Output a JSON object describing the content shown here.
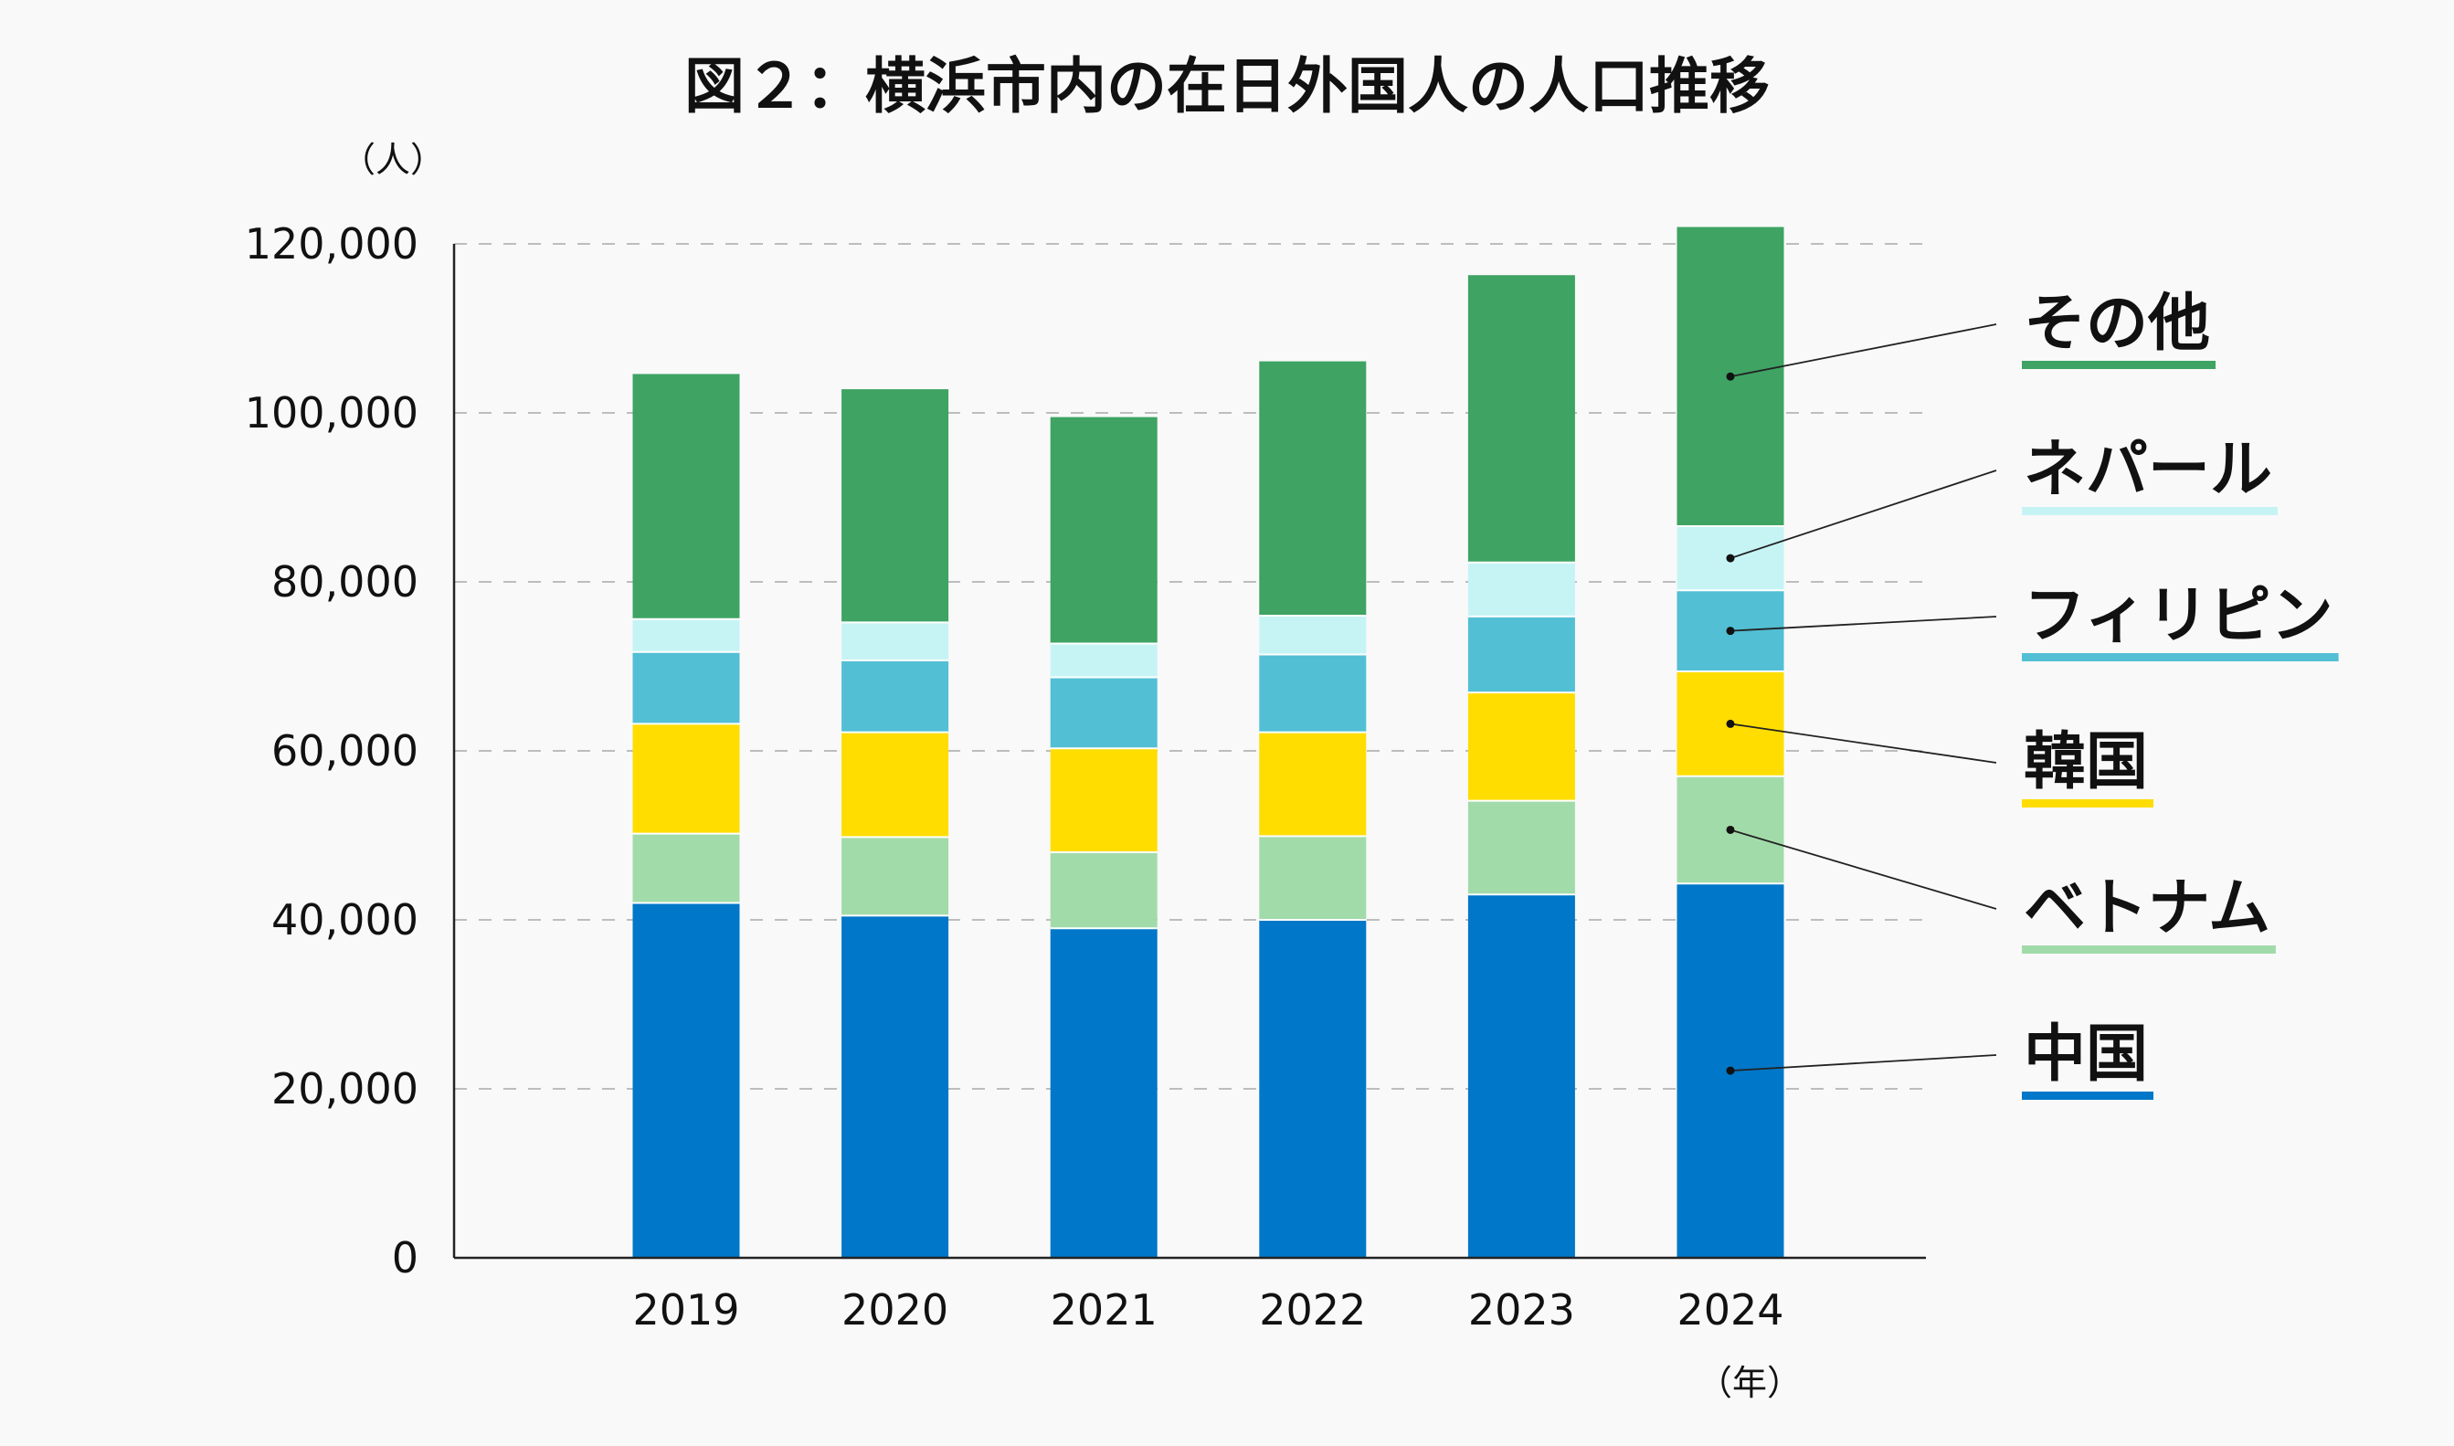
{
  "chart_data": {
    "type": "bar",
    "stacked": true,
    "title": "図２：横浜市内の在日外国人の人口推移",
    "ylabel": "（人）",
    "xlabel": "（年）",
    "categories": [
      "2019",
      "2020",
      "2021",
      "2022",
      "2023",
      "2024"
    ],
    "ylim": [
      0,
      120000
    ],
    "yticks": [
      0,
      20000,
      40000,
      60000,
      80000,
      100000,
      120000
    ],
    "ytick_labels": [
      "0",
      "20,000",
      "40,000",
      "60,000",
      "80,000",
      "100,000",
      "120,000"
    ],
    "grid": "horizontal dashed",
    "legend_placement": "right",
    "series": [
      {
        "name": "中国",
        "color": "#0077c8",
        "values": [
          42000,
          40500,
          39000,
          40000,
          43000,
          44300
        ]
      },
      {
        "name": "ベトナム",
        "color": "#a2dbaa",
        "values": [
          8200,
          9300,
          9000,
          9900,
          11100,
          12700
        ]
      },
      {
        "name": "韓国",
        "color": "#ffdd00",
        "values": [
          13000,
          12400,
          12300,
          12300,
          12800,
          12400
        ]
      },
      {
        "name": "フィリピン",
        "color": "#52bfd4",
        "values": [
          8500,
          8500,
          8400,
          9200,
          9000,
          9600
        ]
      },
      {
        "name": "ネパール",
        "color": "#c6f4f5",
        "values": [
          3900,
          4500,
          4000,
          4600,
          6400,
          7600
        ]
      },
      {
        "name": "その他",
        "color": "#3ea363",
        "values": [
          29000,
          27600,
          26800,
          30100,
          34000,
          35400
        ]
      }
    ]
  }
}
